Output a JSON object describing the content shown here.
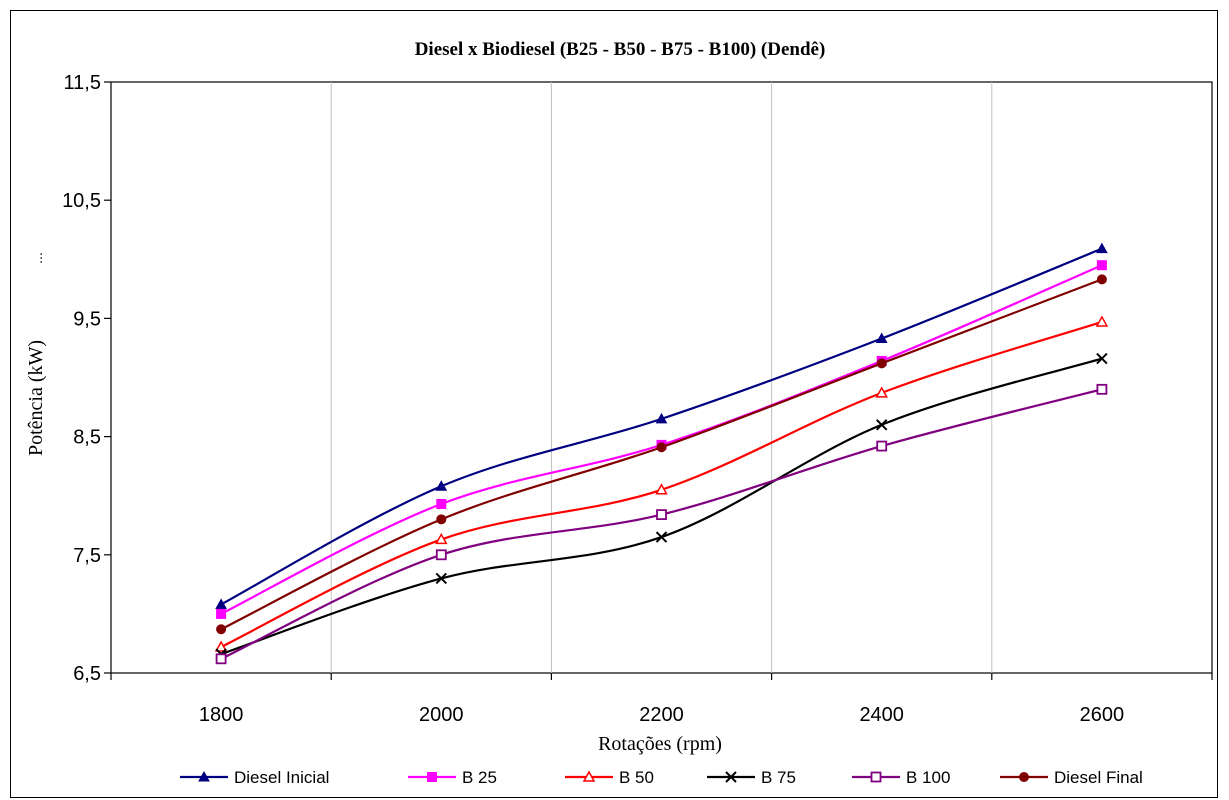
{
  "chart_data": {
    "type": "line",
    "title": "Diesel x Biodiesel (B25 - B50 - B75 - B100) (Dendê)",
    "xlabel": "Rotações (rpm)",
    "ylabel": "Potência (kW)",
    "ylabel_marker": "...",
    "categories": [
      "1800",
      "2000",
      "2200",
      "2400",
      "2600"
    ],
    "ylim": [
      6.5,
      11.5
    ],
    "yticks": [
      "6,5",
      "7,5",
      "8,5",
      "9,5",
      "10,5",
      "11,5"
    ],
    "grid": "vertical-major",
    "legend_position": "bottom",
    "series": [
      {
        "name": "Diesel Inicial",
        "color": "#000080",
        "marker": "triangle-filled",
        "values": [
          7.08,
          8.08,
          8.65,
          9.33,
          10.09
        ]
      },
      {
        "name": "B 25",
        "color": "#ff00ff",
        "marker": "square-filled",
        "values": [
          7.0,
          7.93,
          8.43,
          9.14,
          9.95
        ]
      },
      {
        "name": "B 50",
        "color": "#ff0000",
        "marker": "triangle-open",
        "values": [
          6.72,
          7.63,
          8.05,
          8.87,
          9.47
        ]
      },
      {
        "name": "B 75",
        "color": "#000000",
        "marker": "x",
        "values": [
          6.66,
          7.3,
          7.65,
          8.6,
          9.16
        ]
      },
      {
        "name": "B 100",
        "color": "#800080",
        "marker": "square-open",
        "values": [
          6.62,
          7.5,
          7.84,
          8.42,
          8.9
        ]
      },
      {
        "name": "Diesel Final",
        "color": "#800000",
        "marker": "circle-filled",
        "values": [
          6.87,
          7.8,
          8.41,
          9.12,
          9.83
        ]
      }
    ]
  }
}
